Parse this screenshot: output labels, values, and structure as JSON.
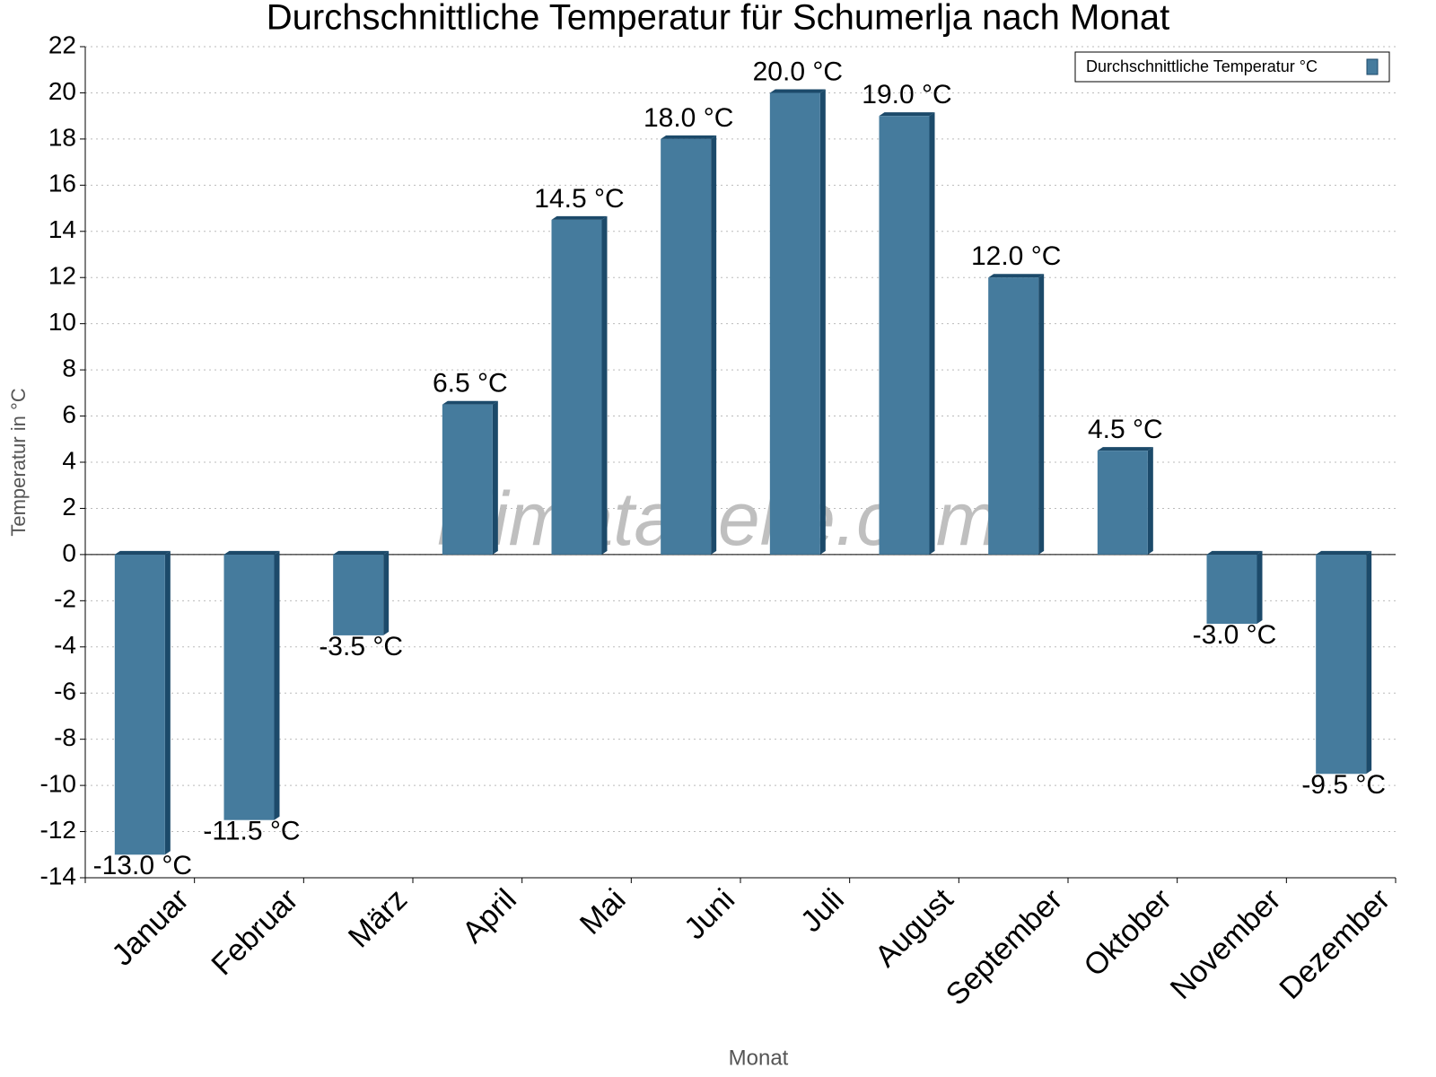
{
  "chart_data": {
    "type": "bar",
    "title": "Durchschnittliche Temperatur für Schumerlja nach Monat",
    "watermark": "klimatabelle.com",
    "x_label": "Monat",
    "y_label": "Temperatur in °C",
    "categories": [
      "Januar",
      "Februar",
      "März",
      "April",
      "Mai",
      "Juni",
      "Juli",
      "August",
      "September",
      "Oktober",
      "November",
      "Dezember"
    ],
    "series": [
      {
        "name": "Durchschnittliche Temperatur °C",
        "color": "#457b9d",
        "values": [
          -13,
          -11.5,
          -3.5,
          6.5,
          14.5,
          18,
          20,
          19,
          12,
          4.5,
          -3,
          -9.5
        ],
        "value_labels": [
          "-13.0 °C",
          "-11.5 °C",
          "-3.5 °C",
          "6.5 °C",
          "14.5 °C",
          "18.0 °C",
          "20.0 °C",
          "19.0 °C",
          "12.0 °C",
          "4.5 °C",
          "-3.0 °C",
          "-9.5 °C"
        ]
      }
    ],
    "ylim": [
      -14,
      22
    ],
    "yticks": [
      -14,
      -12,
      -10,
      -8,
      -6,
      -4,
      -2,
      0,
      2,
      4,
      6,
      8,
      10,
      12,
      14,
      16,
      18,
      20,
      22
    ],
    "grid": true,
    "legend": "top-right"
  }
}
